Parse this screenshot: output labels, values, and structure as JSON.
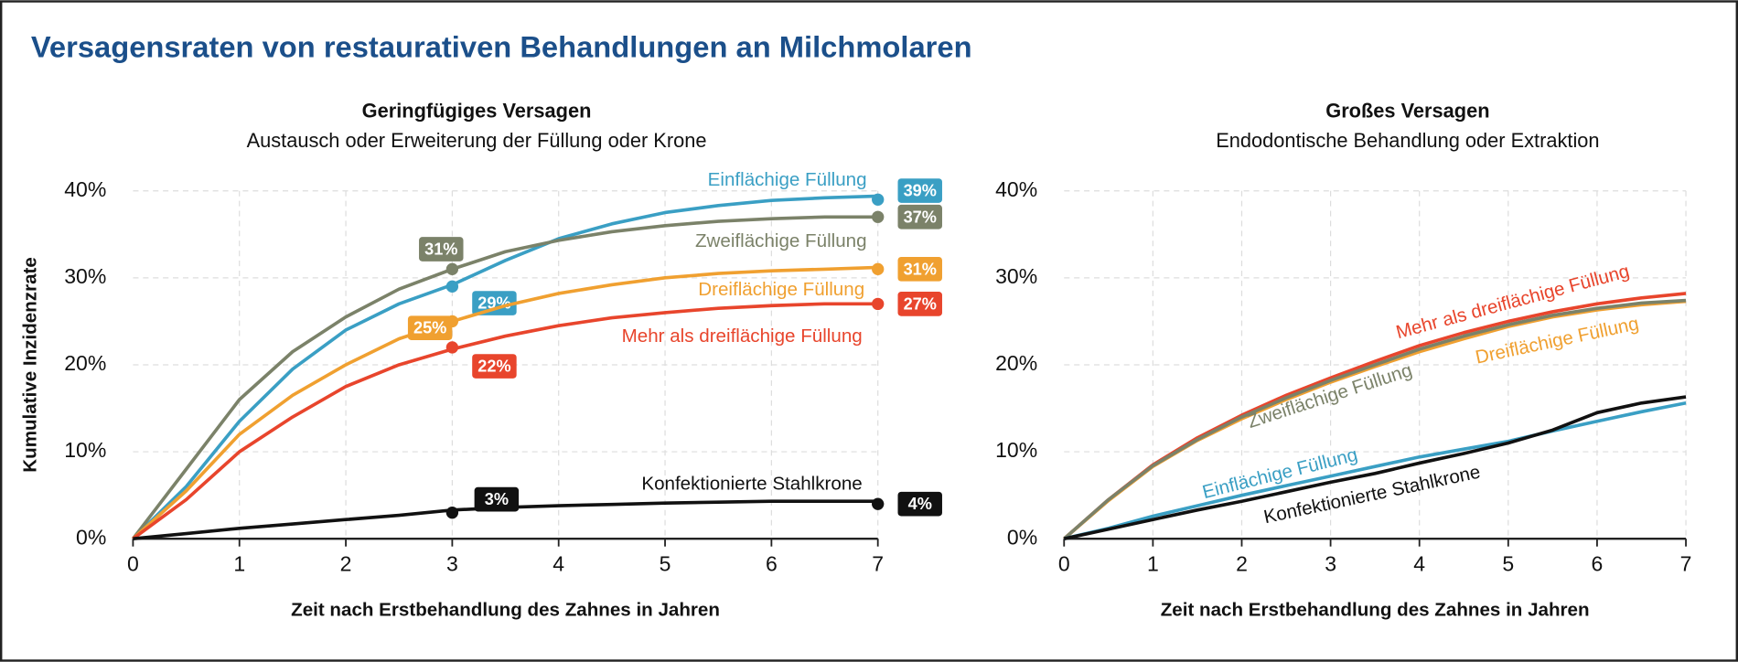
{
  "title": "Versagensraten von restaurativen Behandlungen an Milchmolaren",
  "chart_data": [
    {
      "type": "line",
      "title": "Geringfügiges Versagen",
      "subtitle": "Austausch oder Erweiterung der Füllung oder Krone",
      "y_label": "Kumulative Inzidenzrate",
      "x_label": "Zeit nach Erstbehandlung des Zahnes in Jahren",
      "x": [
        0,
        0.5,
        1,
        1.5,
        2,
        2.5,
        3,
        3.5,
        4,
        4.5,
        5,
        5.5,
        6,
        6.5,
        7
      ],
      "xlim": [
        0,
        7
      ],
      "xticks": [
        0,
        1,
        2,
        3,
        4,
        5,
        6,
        7
      ],
      "ylim": [
        0,
        40
      ],
      "yticks": [
        {
          "value": 0,
          "label": "0%"
        },
        {
          "value": 10,
          "label": "10%"
        },
        {
          "value": 20,
          "label": "20%"
        },
        {
          "value": 30,
          "label": "30%"
        },
        {
          "value": 40,
          "label": "40%"
        }
      ],
      "grid": true,
      "series": [
        {
          "name": "Einflächige Füllung",
          "color": "#3a9fc4",
          "values": [
            0,
            6,
            13.5,
            19.5,
            24,
            27,
            29.2,
            32,
            34.5,
            36.2,
            37.5,
            38.3,
            38.9,
            39.2,
            39.4
          ],
          "points": {
            "x": [
              3,
              7
            ],
            "values": [
              29,
              39
            ],
            "value_labels": [
              "29%",
              "39%"
            ]
          }
        },
        {
          "name": "Zweiflächige Füllung",
          "color": "#7b8269",
          "values": [
            0,
            8,
            16,
            21.5,
            25.5,
            28.7,
            31,
            33,
            34.3,
            35.3,
            36,
            36.5,
            36.8,
            37,
            37
          ],
          "points": {
            "x": [
              3,
              7
            ],
            "values": [
              31,
              37
            ],
            "value_labels": [
              "31%",
              "37%"
            ]
          }
        },
        {
          "name": "Dreiflächige Füllung",
          "color": "#f0a030",
          "values": [
            0,
            5.5,
            12,
            16.5,
            20,
            23,
            25,
            26.8,
            28.2,
            29.2,
            30,
            30.5,
            30.8,
            31,
            31.2
          ],
          "points": {
            "x": [
              3,
              7
            ],
            "values": [
              25,
              31
            ],
            "value_labels": [
              "25%",
              "31%"
            ]
          }
        },
        {
          "name": "Mehr als dreiflächige Füllung",
          "color": "#e8452c",
          "values": [
            0,
            4.5,
            10,
            14,
            17.5,
            20,
            21.8,
            23.3,
            24.5,
            25.4,
            26,
            26.5,
            26.8,
            27,
            27
          ],
          "points": {
            "x": [
              3,
              7
            ],
            "values": [
              22,
              27
            ],
            "value_labels": [
              "22%",
              "27%"
            ]
          }
        },
        {
          "name": "Konfektionierte Stahlkrone",
          "color": "#111111",
          "values": [
            0,
            0.6,
            1.2,
            1.7,
            2.2,
            2.7,
            3.3,
            3.6,
            3.8,
            3.95,
            4.1,
            4.2,
            4.3,
            4.3,
            4.3
          ],
          "points": {
            "x": [
              3,
              7
            ],
            "values": [
              3,
              4
            ],
            "value_labels": [
              "3%",
              "4%"
            ]
          }
        }
      ]
    },
    {
      "type": "line",
      "title": "Großes Versagen",
      "subtitle": "Endodontische Behandlung oder Extraktion",
      "x_label": "Zeit nach Erstbehandlung des Zahnes in Jahren",
      "x": [
        0,
        0.5,
        1,
        1.5,
        2,
        2.5,
        3,
        3.5,
        4,
        4.5,
        5,
        5.5,
        6,
        6.5,
        7
      ],
      "xlim": [
        0,
        7
      ],
      "xticks": [
        0,
        1,
        2,
        3,
        4,
        5,
        6,
        7
      ],
      "ylim": [
        0,
        40
      ],
      "yticks": [
        {
          "value": 0,
          "label": "0%"
        },
        {
          "value": 10,
          "label": "10%"
        },
        {
          "value": 20,
          "label": "20%"
        },
        {
          "value": 30,
          "label": "30%"
        },
        {
          "value": 40,
          "label": "40%"
        }
      ],
      "grid": true,
      "series": [
        {
          "name": "Mehr als dreiflächige Füllung",
          "color": "#e8452c",
          "values": [
            0,
            4.5,
            8.5,
            11.6,
            14.2,
            16.5,
            18.5,
            20.4,
            22.2,
            23.7,
            25,
            26.1,
            27,
            27.7,
            28.2
          ]
        },
        {
          "name": "Dreiflächige Füllung",
          "color": "#f0a030",
          "values": [
            0,
            4.4,
            8.3,
            11.3,
            13.8,
            16,
            18,
            19.8,
            21.5,
            23,
            24.4,
            25.5,
            26.3,
            26.9,
            27.3
          ]
        },
        {
          "name": "Zweiflächige Füllung",
          "color": "#7b8269",
          "values": [
            0,
            4.5,
            8.4,
            11.4,
            14,
            16.2,
            18.2,
            20,
            21.8,
            23.3,
            24.6,
            25.7,
            26.5,
            27.1,
            27.4
          ]
        },
        {
          "name": "Einflächige Füllung",
          "color": "#3a9fc4",
          "values": [
            0,
            1.2,
            2.6,
            3.8,
            5,
            6.1,
            7.2,
            8.3,
            9.4,
            10.3,
            11.2,
            12.4,
            13.5,
            14.6,
            15.6
          ]
        },
        {
          "name": "Konfektionierte Stahlkrone",
          "color": "#111111",
          "values": [
            0,
            1.1,
            2.2,
            3.3,
            4.3,
            5.4,
            6.5,
            7.5,
            8.7,
            9.8,
            11,
            12.5,
            14.5,
            15.6,
            16.3
          ]
        }
      ]
    }
  ]
}
